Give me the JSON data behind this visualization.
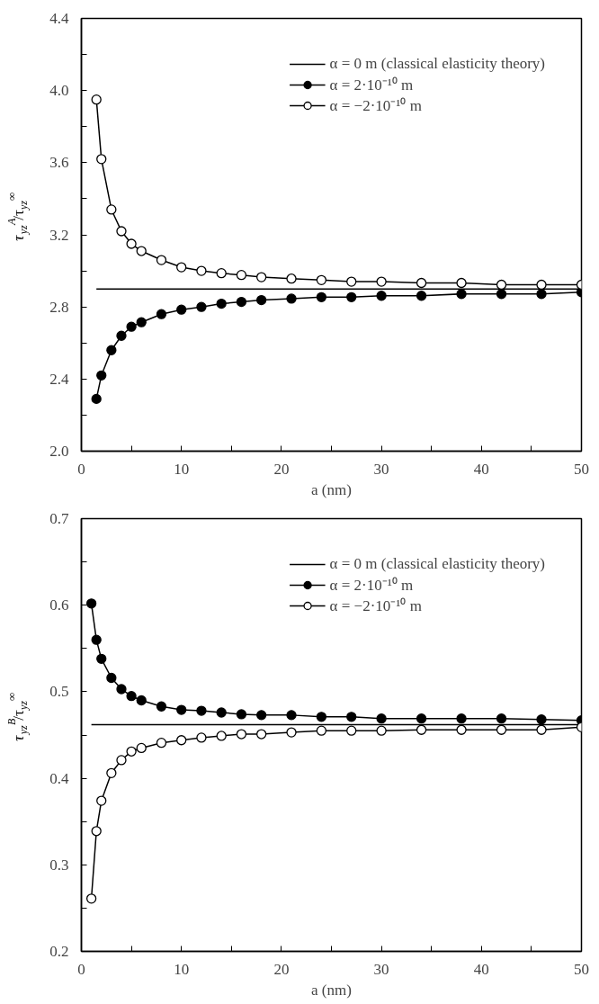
{
  "chart_data": [
    {
      "type": "line",
      "xlabel": "a (nm)",
      "ylabel": "τ$_{yz}$$^{A}$/τ$_{yz}$$^{∞}$",
      "legend": "top right",
      "grid": false,
      "line_style": "solid",
      "xlim": [
        0,
        50
      ],
      "xticks": [
        0,
        {
          "value": 5,
          "label": null
        },
        10,
        {
          "value": 15,
          "label": null
        },
        20,
        {
          "value": 25,
          "label": null
        },
        30,
        {
          "value": 35,
          "label": null
        },
        40,
        {
          "value": 45,
          "label": null
        },
        50
      ],
      "ylim": [
        2.0,
        4.4
      ],
      "yticks": [
        "2.0",
        {
          "value": 2.2,
          "label": null
        },
        2.4,
        {
          "value": 2.6,
          "label": null
        },
        2.8,
        {
          "value": 3.0,
          "label": null
        },
        3.2,
        {
          "value": 3.4,
          "label": null
        },
        3.6,
        {
          "value": 3.8,
          "label": null
        },
        "4.0",
        {
          "value": 4.2,
          "label": null
        },
        4.4
      ],
      "series": [
        {
          "name": "α = 0 m (classical elasticity theory)",
          "color": "#000000",
          "marker": "none",
          "x": [
            1.5,
            50
          ],
          "values": [
            2.9,
            2.9
          ]
        },
        {
          "name": "α = 2·10⁻¹⁰ m",
          "color": "#000000",
          "marker": "circle",
          "x": [
            1.5,
            2,
            3,
            4,
            5,
            6,
            8,
            10,
            12,
            14,
            16,
            18,
            21,
            24,
            27,
            30,
            34,
            38,
            42,
            46,
            50
          ],
          "values": [
            2.29,
            2.42,
            2.56,
            2.64,
            2.69,
            2.715,
            2.76,
            2.785,
            2.8,
            2.818,
            2.828,
            2.838,
            2.846,
            2.854,
            2.854,
            2.862,
            2.862,
            2.872,
            2.872,
            2.872,
            2.882
          ]
        },
        {
          "name": "α = −2·10⁻¹⁰ m",
          "color": "#000000",
          "marker": "circle_open",
          "x": [
            1.5,
            2,
            3,
            4,
            5,
            6,
            8,
            10,
            12,
            14,
            16,
            18,
            21,
            24,
            27,
            30,
            34,
            38,
            42,
            46,
            50
          ],
          "values": [
            3.95,
            3.62,
            3.34,
            3.22,
            3.15,
            3.11,
            3.06,
            3.02,
            3.0,
            2.987,
            2.977,
            2.965,
            2.957,
            2.949,
            2.94,
            2.94,
            2.933,
            2.933,
            2.923,
            2.923,
            2.923
          ]
        }
      ]
    },
    {
      "type": "line",
      "xlabel": "a (nm)",
      "ylabel": "τ$_{yz}$$^{B}$/τ$_{yz}$$^{∞}$",
      "legend": "top right",
      "grid": false,
      "line_style": "solid",
      "xlim": [
        0,
        50
      ],
      "xticks": [
        0,
        {
          "value": 5,
          "label": null
        },
        10,
        {
          "value": 15,
          "label": null
        },
        20,
        {
          "value": 25,
          "label": null
        },
        30,
        {
          "value": 35,
          "label": null
        },
        40,
        {
          "value": 45,
          "label": null
        },
        50
      ],
      "ylim": [
        0.2,
        0.7
      ],
      "yticks": [
        0.2,
        {
          "value": 0.25,
          "label": null
        },
        0.3,
        {
          "value": 0.35,
          "label": null
        },
        0.4,
        {
          "value": 0.45,
          "label": null
        },
        0.5,
        {
          "value": 0.55,
          "label": null
        },
        0.6,
        {
          "value": 0.65,
          "label": null
        },
        0.7
      ],
      "series": [
        {
          "name": "α = 0 m (classical elasticity theory)",
          "color": "#000000",
          "marker": "none",
          "x": [
            1,
            50
          ],
          "values": [
            0.462,
            0.462
          ]
        },
        {
          "name": "α = 2·10⁻¹⁰ m",
          "color": "#000000",
          "marker": "circle",
          "x": [
            1,
            1.5,
            2,
            3,
            4,
            5,
            6,
            8,
            10,
            12,
            14,
            16,
            18,
            21,
            24,
            27,
            30,
            34,
            38,
            42,
            46,
            50
          ],
          "values": [
            0.602,
            0.56,
            0.538,
            0.516,
            0.503,
            0.495,
            0.49,
            0.483,
            0.479,
            0.478,
            0.476,
            0.474,
            0.473,
            0.473,
            0.471,
            0.471,
            0.469,
            0.469,
            0.469,
            0.469,
            0.468,
            0.467
          ]
        },
        {
          "name": "α = −2·10⁻¹⁰ m",
          "color": "#000000",
          "marker": "circle_open",
          "x": [
            1,
            1.5,
            2,
            3,
            4,
            5,
            6,
            8,
            10,
            12,
            14,
            16,
            18,
            21,
            24,
            27,
            30,
            34,
            38,
            42,
            46,
            50
          ],
          "values": [
            0.261,
            0.339,
            0.374,
            0.406,
            0.421,
            0.431,
            0.435,
            0.441,
            0.444,
            0.447,
            0.449,
            0.451,
            0.451,
            0.453,
            0.455,
            0.455,
            0.455,
            0.456,
            0.456,
            0.456,
            0.456,
            0.459
          ]
        }
      ]
    }
  ]
}
